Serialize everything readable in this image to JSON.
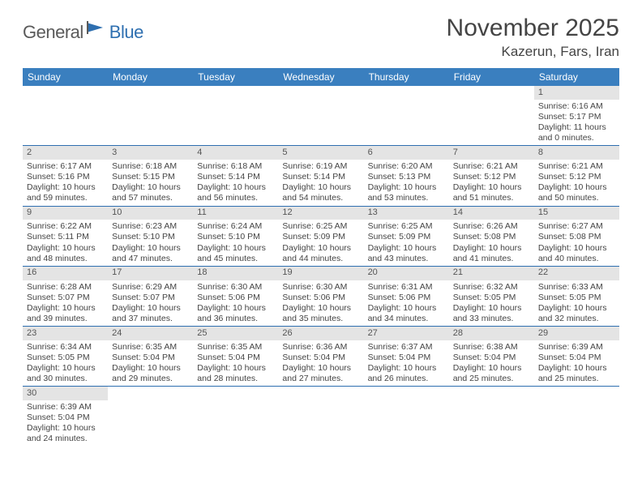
{
  "logo": {
    "text1": "General",
    "text2": "Blue"
  },
  "title": "November 2025",
  "location": "Kazerun, Fars, Iran",
  "colors": {
    "header_bg": "#3a7fbf",
    "border": "#2e6fb0",
    "daynum_bg": "#e4e4e4",
    "text": "#444444",
    "logo_blue": "#2e6fb0",
    "logo_gray": "#5a5a5a"
  },
  "weekdays": [
    "Sunday",
    "Monday",
    "Tuesday",
    "Wednesday",
    "Thursday",
    "Friday",
    "Saturday"
  ],
  "weeks": [
    [
      null,
      null,
      null,
      null,
      null,
      null,
      {
        "n": "1",
        "sr": "Sunrise: 6:16 AM",
        "ss": "Sunset: 5:17 PM",
        "dl": "Daylight: 11 hours and 0 minutes."
      }
    ],
    [
      {
        "n": "2",
        "sr": "Sunrise: 6:17 AM",
        "ss": "Sunset: 5:16 PM",
        "dl": "Daylight: 10 hours and 59 minutes."
      },
      {
        "n": "3",
        "sr": "Sunrise: 6:18 AM",
        "ss": "Sunset: 5:15 PM",
        "dl": "Daylight: 10 hours and 57 minutes."
      },
      {
        "n": "4",
        "sr": "Sunrise: 6:18 AM",
        "ss": "Sunset: 5:14 PM",
        "dl": "Daylight: 10 hours and 56 minutes."
      },
      {
        "n": "5",
        "sr": "Sunrise: 6:19 AM",
        "ss": "Sunset: 5:14 PM",
        "dl": "Daylight: 10 hours and 54 minutes."
      },
      {
        "n": "6",
        "sr": "Sunrise: 6:20 AM",
        "ss": "Sunset: 5:13 PM",
        "dl": "Daylight: 10 hours and 53 minutes."
      },
      {
        "n": "7",
        "sr": "Sunrise: 6:21 AM",
        "ss": "Sunset: 5:12 PM",
        "dl": "Daylight: 10 hours and 51 minutes."
      },
      {
        "n": "8",
        "sr": "Sunrise: 6:21 AM",
        "ss": "Sunset: 5:12 PM",
        "dl": "Daylight: 10 hours and 50 minutes."
      }
    ],
    [
      {
        "n": "9",
        "sr": "Sunrise: 6:22 AM",
        "ss": "Sunset: 5:11 PM",
        "dl": "Daylight: 10 hours and 48 minutes."
      },
      {
        "n": "10",
        "sr": "Sunrise: 6:23 AM",
        "ss": "Sunset: 5:10 PM",
        "dl": "Daylight: 10 hours and 47 minutes."
      },
      {
        "n": "11",
        "sr": "Sunrise: 6:24 AM",
        "ss": "Sunset: 5:10 PM",
        "dl": "Daylight: 10 hours and 45 minutes."
      },
      {
        "n": "12",
        "sr": "Sunrise: 6:25 AM",
        "ss": "Sunset: 5:09 PM",
        "dl": "Daylight: 10 hours and 44 minutes."
      },
      {
        "n": "13",
        "sr": "Sunrise: 6:25 AM",
        "ss": "Sunset: 5:09 PM",
        "dl": "Daylight: 10 hours and 43 minutes."
      },
      {
        "n": "14",
        "sr": "Sunrise: 6:26 AM",
        "ss": "Sunset: 5:08 PM",
        "dl": "Daylight: 10 hours and 41 minutes."
      },
      {
        "n": "15",
        "sr": "Sunrise: 6:27 AM",
        "ss": "Sunset: 5:08 PM",
        "dl": "Daylight: 10 hours and 40 minutes."
      }
    ],
    [
      {
        "n": "16",
        "sr": "Sunrise: 6:28 AM",
        "ss": "Sunset: 5:07 PM",
        "dl": "Daylight: 10 hours and 39 minutes."
      },
      {
        "n": "17",
        "sr": "Sunrise: 6:29 AM",
        "ss": "Sunset: 5:07 PM",
        "dl": "Daylight: 10 hours and 37 minutes."
      },
      {
        "n": "18",
        "sr": "Sunrise: 6:30 AM",
        "ss": "Sunset: 5:06 PM",
        "dl": "Daylight: 10 hours and 36 minutes."
      },
      {
        "n": "19",
        "sr": "Sunrise: 6:30 AM",
        "ss": "Sunset: 5:06 PM",
        "dl": "Daylight: 10 hours and 35 minutes."
      },
      {
        "n": "20",
        "sr": "Sunrise: 6:31 AM",
        "ss": "Sunset: 5:06 PM",
        "dl": "Daylight: 10 hours and 34 minutes."
      },
      {
        "n": "21",
        "sr": "Sunrise: 6:32 AM",
        "ss": "Sunset: 5:05 PM",
        "dl": "Daylight: 10 hours and 33 minutes."
      },
      {
        "n": "22",
        "sr": "Sunrise: 6:33 AM",
        "ss": "Sunset: 5:05 PM",
        "dl": "Daylight: 10 hours and 32 minutes."
      }
    ],
    [
      {
        "n": "23",
        "sr": "Sunrise: 6:34 AM",
        "ss": "Sunset: 5:05 PM",
        "dl": "Daylight: 10 hours and 30 minutes."
      },
      {
        "n": "24",
        "sr": "Sunrise: 6:35 AM",
        "ss": "Sunset: 5:04 PM",
        "dl": "Daylight: 10 hours and 29 minutes."
      },
      {
        "n": "25",
        "sr": "Sunrise: 6:35 AM",
        "ss": "Sunset: 5:04 PM",
        "dl": "Daylight: 10 hours and 28 minutes."
      },
      {
        "n": "26",
        "sr": "Sunrise: 6:36 AM",
        "ss": "Sunset: 5:04 PM",
        "dl": "Daylight: 10 hours and 27 minutes."
      },
      {
        "n": "27",
        "sr": "Sunrise: 6:37 AM",
        "ss": "Sunset: 5:04 PM",
        "dl": "Daylight: 10 hours and 26 minutes."
      },
      {
        "n": "28",
        "sr": "Sunrise: 6:38 AM",
        "ss": "Sunset: 5:04 PM",
        "dl": "Daylight: 10 hours and 25 minutes."
      },
      {
        "n": "29",
        "sr": "Sunrise: 6:39 AM",
        "ss": "Sunset: 5:04 PM",
        "dl": "Daylight: 10 hours and 25 minutes."
      }
    ],
    [
      {
        "n": "30",
        "sr": "Sunrise: 6:39 AM",
        "ss": "Sunset: 5:04 PM",
        "dl": "Daylight: 10 hours and 24 minutes."
      },
      null,
      null,
      null,
      null,
      null,
      null
    ]
  ]
}
